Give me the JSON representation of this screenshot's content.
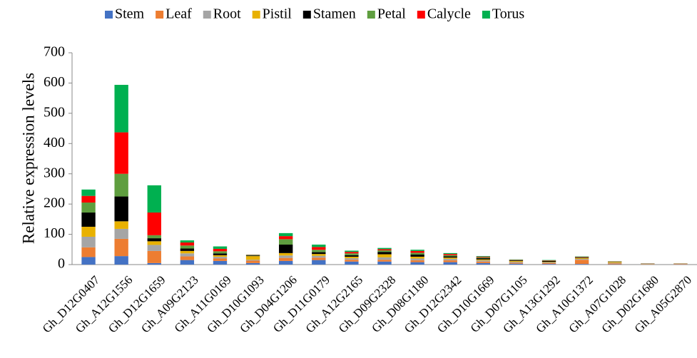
{
  "chart_data": {
    "type": "stacked_bar",
    "y_label": "Relative expression levels",
    "categories": [
      "Gh_D12G0407",
      "Gh_A12G1556",
      "Gh_D12G1659",
      "Gh_A09G2123",
      "Gh_A11G0169",
      "Gh_D10G1093",
      "Gh_D04G1206",
      "Gh_D11G0179",
      "Gh_A12G2165",
      "Gh_D09G2328",
      "Gh_D08G1180",
      "Gh_D12G2342",
      "Gh_D10G1669",
      "Gh_D07G1105",
      "Gh_A13G1292",
      "Gh_A10G1372",
      "Gh_A07G1028",
      "Gh_D02G1680",
      "Gh_A05G2870"
    ],
    "series": [
      {
        "name": "Stem",
        "color": "#4472c4",
        "values": [
          25,
          28,
          5,
          15,
          12,
          5,
          12,
          15,
          10,
          10,
          8,
          8,
          5,
          3,
          2,
          2,
          1,
          0.5,
          0.5
        ]
      },
      {
        "name": "Leaf",
        "color": "#ed7d31",
        "values": [
          32,
          57,
          40,
          12,
          8,
          8,
          10,
          8,
          6,
          6,
          6,
          6,
          5,
          3,
          3,
          14,
          3,
          1,
          1.5
        ]
      },
      {
        "name": "Root",
        "color": "#a5a5a5",
        "values": [
          35,
          33,
          20,
          10,
          6,
          3,
          8,
          6,
          5,
          8,
          6,
          5,
          4,
          3,
          2,
          3,
          2,
          0.5,
          0.5
        ]
      },
      {
        "name": "Pistil",
        "color": "#e8b100",
        "values": [
          33,
          25,
          12,
          8,
          5,
          12,
          8,
          6,
          5,
          10,
          6,
          4,
          3,
          3,
          2,
          3,
          3,
          0.5,
          0.5
        ]
      },
      {
        "name": "Stamen",
        "color": "#000000",
        "values": [
          47,
          82,
          10,
          8,
          6,
          2,
          28,
          6,
          5,
          8,
          7,
          4,
          4,
          2,
          3,
          2,
          1,
          0.5,
          0.3
        ]
      },
      {
        "name": "Petal",
        "color": "#5f9e3f",
        "values": [
          33,
          75,
          10,
          10,
          7,
          1,
          18,
          8,
          6,
          5,
          6,
          4,
          3,
          1,
          1,
          1,
          0.5,
          0.3,
          0.2
        ]
      },
      {
        "name": "Calycle",
        "color": "#ff0000",
        "values": [
          22,
          137,
          75,
          10,
          8,
          1,
          10,
          9,
          5,
          4,
          6,
          4,
          2,
          1,
          1,
          1,
          0.3,
          0.4,
          0.3
        ]
      },
      {
        "name": "Torus",
        "color": "#00b050",
        "values": [
          21,
          157,
          90,
          7,
          8,
          1,
          10,
          8,
          4,
          4,
          4,
          3,
          2,
          1,
          1,
          1,
          0.2,
          0.3,
          0.2
        ]
      }
    ],
    "ylim": [
      0,
      700
    ],
    "yticks": [
      0,
      100,
      200,
      300,
      400,
      500,
      600,
      700
    ],
    "legend": "top"
  }
}
